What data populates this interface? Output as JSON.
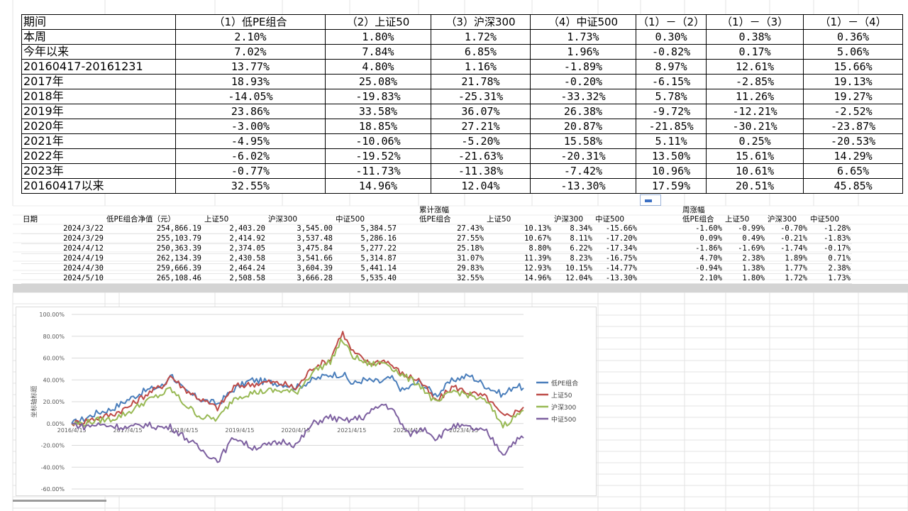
{
  "summary_table": {
    "headers": [
      "期间",
      "（1）低PE组合",
      "（2）上证50",
      "（3）沪深300",
      "（4）中证500",
      "（1）－（2）",
      "（1）－（3）",
      "（1）－（4）"
    ],
    "rows": [
      [
        "本周",
        "2.10%",
        "1.80%",
        "1.72%",
        "1.73%",
        "0.30%",
        "0.38%",
        "0.36%"
      ],
      [
        "今年以来",
        "7.02%",
        "7.84%",
        "6.85%",
        "1.96%",
        "-0.82%",
        "0.17%",
        "5.06%"
      ],
      [
        "20160417-20161231",
        "13.77%",
        "4.80%",
        "1.16%",
        "-1.89%",
        "8.97%",
        "12.61%",
        "15.66%"
      ],
      [
        "2017年",
        "18.93%",
        "25.08%",
        "21.78%",
        "-0.20%",
        "-6.15%",
        "-2.85%",
        "19.13%"
      ],
      [
        "2018年",
        "-14.05%",
        "-19.83%",
        "-25.31%",
        "-33.32%",
        "5.78%",
        "11.26%",
        "19.27%"
      ],
      [
        "2019年",
        "23.86%",
        "33.58%",
        "36.07%",
        "26.38%",
        "-9.72%",
        "-12.21%",
        "-2.52%"
      ],
      [
        "2020年",
        "-3.00%",
        "18.85%",
        "27.21%",
        "20.87%",
        "-21.85%",
        "-30.21%",
        "-23.87%"
      ],
      [
        "2021年",
        "-4.95%",
        "-10.06%",
        "-5.20%",
        "15.58%",
        "5.11%",
        "0.25%",
        "-20.53%"
      ],
      [
        "2022年",
        "-6.02%",
        "-19.52%",
        "-21.63%",
        "-20.31%",
        "13.50%",
        "15.61%",
        "14.29%"
      ],
      [
        "2023年",
        "-0.77%",
        "-11.73%",
        "-11.38%",
        "-7.42%",
        "10.96%",
        "10.61%",
        "6.65%"
      ],
      [
        "20160417以来",
        "32.55%",
        "14.96%",
        "12.04%",
        "-13.30%",
        "17.59%",
        "20.51%",
        "45.85%"
      ]
    ]
  },
  "detail_table": {
    "group_headers": {
      "cumulative": "累计涨幅",
      "weekly": "周涨幅"
    },
    "headers": [
      "日期",
      "低PE组合净值（元）",
      "上证50",
      "沪深300",
      "中证500",
      "",
      "低PE组合",
      "上证50",
      "沪深300",
      "中证500",
      "",
      "低PE组合",
      "上证50",
      "沪深300",
      "中证500"
    ],
    "rows": [
      [
        "2024/3/22",
        "254,866.19",
        "2,403.20",
        "3,545.00",
        "5,384.57",
        "",
        "27.43%",
        "10.13%",
        "8.34%",
        "-15.66%",
        "",
        "-1.60%",
        "-0.99%",
        "-0.70%",
        "-1.28%"
      ],
      [
        "2024/3/29",
        "255,103.79",
        "2,414.92",
        "3,537.48",
        "5,286.16",
        "",
        "27.55%",
        "10.67%",
        "8.11%",
        "-17.20%",
        "",
        "0.09%",
        "0.49%",
        "-0.21%",
        "-1.83%"
      ],
      [
        "2024/4/12",
        "250,363.39",
        "2,374.05",
        "3,475.84",
        "5,277.22",
        "",
        "25.18%",
        "8.80%",
        "6.22%",
        "-17.34%",
        "",
        "-1.86%",
        "-1.69%",
        "-1.74%",
        "-0.17%"
      ],
      [
        "2024/4/19",
        "262,134.39",
        "2,430.58",
        "3,541.66",
        "5,314.87",
        "",
        "31.07%",
        "11.39%",
        "8.23%",
        "-16.75%",
        "",
        "4.70%",
        "2.38%",
        "1.89%",
        "0.71%"
      ],
      [
        "2024/4/30",
        "259,666.39",
        "2,464.24",
        "3,604.39",
        "5,441.14",
        "",
        "29.83%",
        "12.93%",
        "10.15%",
        "-14.77%",
        "",
        "-0.94%",
        "1.38%",
        "1.77%",
        "2.38%"
      ],
      [
        "2024/5/10",
        "265,108.46",
        "2,508.58",
        "3,666.28",
        "5,535.40",
        "",
        "32.55%",
        "14.96%",
        "12.04%",
        "-13.30%",
        "",
        "2.10%",
        "1.80%",
        "1.72%",
        "1.73%"
      ]
    ]
  },
  "chart_data": {
    "type": "line",
    "ylabel": "坐标轴标题",
    "xlabel": "",
    "ylim": [
      -60,
      100
    ],
    "y_ticks": [
      "100.00%",
      "80.00%",
      "60.00%",
      "40.00%",
      "20.00%",
      "0.00%",
      "-20.00%",
      "-40.00%",
      "-60.00%"
    ],
    "x_ticks": [
      "2016/4/15",
      "2017/4/15",
      "2018/4/15",
      "2019/4/15",
      "2020/4/15",
      "2021/4/15",
      "2022/4/15",
      "2023/4/15"
    ],
    "x_range": [
      2016.29,
      2024.36
    ],
    "legend_position": "right",
    "series": [
      {
        "name": "低PE组合",
        "color": "#4a7ebb",
        "points": [
          [
            2016.29,
            0
          ],
          [
            2016.5,
            4
          ],
          [
            2016.75,
            10
          ],
          [
            2017.0,
            13
          ],
          [
            2017.3,
            22
          ],
          [
            2017.6,
            30
          ],
          [
            2017.95,
            35
          ],
          [
            2018.05,
            46
          ],
          [
            2018.3,
            30
          ],
          [
            2018.6,
            22
          ],
          [
            2018.9,
            18
          ],
          [
            2019.2,
            32
          ],
          [
            2019.5,
            40
          ],
          [
            2019.8,
            38
          ],
          [
            2020.1,
            36
          ],
          [
            2020.3,
            33
          ],
          [
            2020.6,
            40
          ],
          [
            2020.9,
            45
          ],
          [
            2021.15,
            45
          ],
          [
            2021.3,
            36
          ],
          [
            2021.5,
            40
          ],
          [
            2021.8,
            38
          ],
          [
            2022.0,
            42
          ],
          [
            2022.2,
            30
          ],
          [
            2022.5,
            38
          ],
          [
            2022.8,
            26
          ],
          [
            2023.1,
            40
          ],
          [
            2023.4,
            44
          ],
          [
            2023.7,
            34
          ],
          [
            2024.0,
            26
          ],
          [
            2024.2,
            35
          ],
          [
            2024.36,
            32.55
          ]
        ]
      },
      {
        "name": "上证50",
        "color": "#be4b48",
        "points": [
          [
            2016.29,
            0
          ],
          [
            2016.5,
            2
          ],
          [
            2016.75,
            5
          ],
          [
            2017.0,
            8
          ],
          [
            2017.3,
            15
          ],
          [
            2017.6,
            26
          ],
          [
            2017.95,
            36
          ],
          [
            2018.05,
            44
          ],
          [
            2018.3,
            32
          ],
          [
            2018.6,
            22
          ],
          [
            2018.9,
            14
          ],
          [
            2019.2,
            34
          ],
          [
            2019.5,
            36
          ],
          [
            2019.8,
            38
          ],
          [
            2020.1,
            36
          ],
          [
            2020.3,
            32
          ],
          [
            2020.6,
            52
          ],
          [
            2020.9,
            58
          ],
          [
            2021.12,
            84
          ],
          [
            2021.3,
            66
          ],
          [
            2021.6,
            55
          ],
          [
            2021.9,
            58
          ],
          [
            2022.2,
            45
          ],
          [
            2022.5,
            40
          ],
          [
            2022.8,
            20
          ],
          [
            2023.1,
            34
          ],
          [
            2023.4,
            28
          ],
          [
            2023.7,
            24
          ],
          [
            2024.0,
            6
          ],
          [
            2024.2,
            10
          ],
          [
            2024.36,
            14.96
          ]
        ]
      },
      {
        "name": "沪深300",
        "color": "#98b954",
        "points": [
          [
            2016.29,
            0
          ],
          [
            2016.5,
            0
          ],
          [
            2016.75,
            3
          ],
          [
            2017.0,
            4
          ],
          [
            2017.3,
            10
          ],
          [
            2017.6,
            20
          ],
          [
            2017.95,
            28
          ],
          [
            2018.05,
            32
          ],
          [
            2018.3,
            18
          ],
          [
            2018.6,
            6
          ],
          [
            2018.9,
            4
          ],
          [
            2019.2,
            24
          ],
          [
            2019.5,
            28
          ],
          [
            2019.8,
            30
          ],
          [
            2020.1,
            30
          ],
          [
            2020.3,
            28
          ],
          [
            2020.6,
            48
          ],
          [
            2020.9,
            56
          ],
          [
            2021.12,
            77
          ],
          [
            2021.3,
            62
          ],
          [
            2021.6,
            54
          ],
          [
            2021.9,
            56
          ],
          [
            2022.2,
            44
          ],
          [
            2022.5,
            36
          ],
          [
            2022.8,
            18
          ],
          [
            2023.1,
            30
          ],
          [
            2023.4,
            26
          ],
          [
            2023.7,
            20
          ],
          [
            2024.0,
            -2
          ],
          [
            2024.2,
            6
          ],
          [
            2024.36,
            12.04
          ]
        ]
      },
      {
        "name": "中证500",
        "color": "#7d60a0",
        "points": [
          [
            2016.29,
            0
          ],
          [
            2016.5,
            -3
          ],
          [
            2016.75,
            -1
          ],
          [
            2017.0,
            -2
          ],
          [
            2017.3,
            -4
          ],
          [
            2017.6,
            -1
          ],
          [
            2017.95,
            -4
          ],
          [
            2018.05,
            -3
          ],
          [
            2018.3,
            -12
          ],
          [
            2018.6,
            -24
          ],
          [
            2018.9,
            -34
          ],
          [
            2019.2,
            -12
          ],
          [
            2019.5,
            -22
          ],
          [
            2019.8,
            -20
          ],
          [
            2020.1,
            -16
          ],
          [
            2020.3,
            -20
          ],
          [
            2020.6,
            0
          ],
          [
            2020.9,
            6
          ],
          [
            2021.15,
            2
          ],
          [
            2021.5,
            6
          ],
          [
            2021.85,
            18
          ],
          [
            2022.0,
            14
          ],
          [
            2022.3,
            -10
          ],
          [
            2022.6,
            -4
          ],
          [
            2022.8,
            -14
          ],
          [
            2023.1,
            -2
          ],
          [
            2023.4,
            -4
          ],
          [
            2023.7,
            -8
          ],
          [
            2024.0,
            -28
          ],
          [
            2024.2,
            -16
          ],
          [
            2024.36,
            -13.3
          ]
        ]
      }
    ]
  }
}
